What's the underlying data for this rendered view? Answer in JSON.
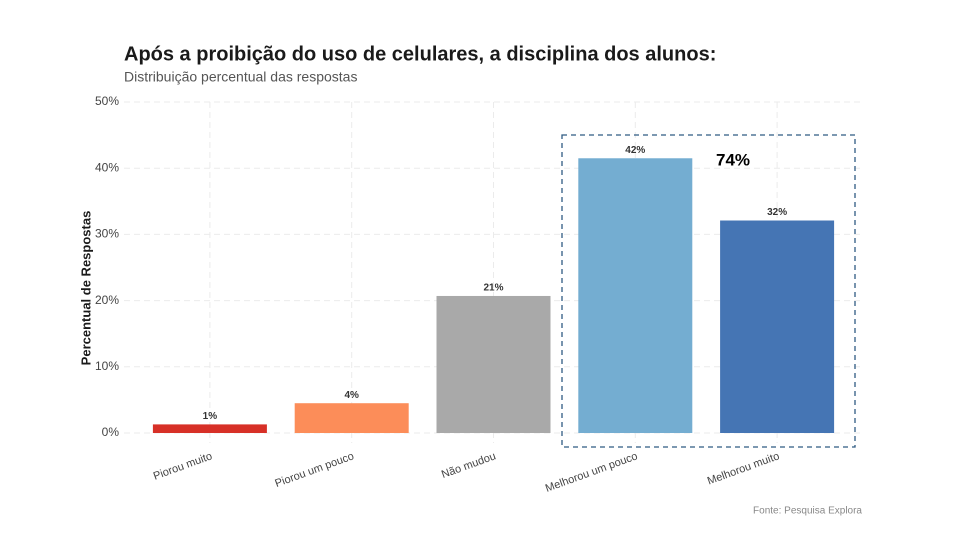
{
  "chart_data": {
    "type": "bar",
    "title": "Após a proibição do uso de celulares, a disciplina dos alunos:",
    "subtitle": "Distribuição percentual das respostas",
    "ylabel": "Percentual de Respostas",
    "caption": "Fonte: Pesquisa Explora",
    "annotation": "74%",
    "categories": [
      "Piorou muito",
      "Piorou um pouco",
      "Não mudou",
      "Melhorou um pouco",
      "Melhorou muito"
    ],
    "values": [
      1.3,
      4.5,
      20.7,
      41.5,
      32.1
    ],
    "value_labels": [
      "1%",
      "4%",
      "21%",
      "42%",
      "32%"
    ],
    "colors": [
      "#d73027",
      "#fc8d59",
      "#a9a9a9",
      "#74add1",
      "#4575b4"
    ],
    "ylim": [
      0,
      50
    ],
    "yticks": [
      {
        "value": 0,
        "label": "0%"
      },
      {
        "value": 10,
        "label": "10%"
      },
      {
        "value": 20,
        "label": "20%"
      },
      {
        "value": 30,
        "label": "30%"
      },
      {
        "value": 40,
        "label": "40%"
      },
      {
        "value": 50,
        "label": "50%"
      }
    ],
    "grid": true
  }
}
